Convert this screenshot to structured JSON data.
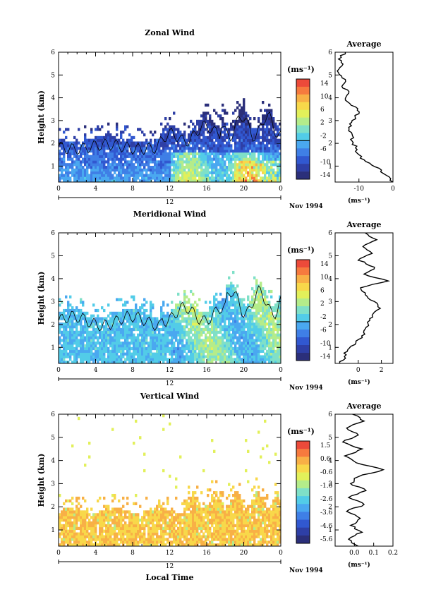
{
  "colors": {
    "palette": [
      "#2b2f7a",
      "#2e3fa6",
      "#3158d0",
      "#3f7fe6",
      "#4aa8f0",
      "#52cce8",
      "#7fe0c8",
      "#b4ec8a",
      "#e2f05a",
      "#f8d84a",
      "#f8b046",
      "#f67a3e",
      "#ec4a3a"
    ]
  },
  "chart_data": [
    {
      "type": "heatmap",
      "name": "zonal",
      "title": "Zonal Wind",
      "ylabel": "Height (km)",
      "xlim": [
        0,
        24
      ],
      "ylim": [
        0.3,
        6
      ],
      "xticks": [
        "0",
        "4",
        "8",
        "12",
        "16",
        "20",
        "0"
      ],
      "yticks": [
        "1",
        "2",
        "3",
        "4",
        "5",
        "6"
      ],
      "day_label": "12",
      "date_label": "Nov 1994",
      "colorbar": {
        "unit": "(ms⁻¹)",
        "ticks": [
          "14",
          "10",
          "6",
          "2",
          "-2",
          "-6",
          "-10",
          "-14"
        ],
        "zero_line_fraction": 0.615
      },
      "profile": {
        "title": "Average",
        "xlabel": "(ms⁻¹)",
        "xticks": [
          "-10",
          "0"
        ],
        "xlim": [
          -17,
          0
        ],
        "heights": [
          0.3,
          0.6,
          0.9,
          1.2,
          1.5,
          1.8,
          2.1,
          2.4,
          2.7,
          3.0,
          3.3,
          3.6,
          3.9,
          4.2,
          4.5,
          4.8,
          5.1,
          5.4,
          5.7,
          6.0
        ],
        "values": [
          0,
          -2,
          -4,
          -8,
          -10,
          -11,
          -12,
          -12,
          -13,
          -12,
          -10,
          -11,
          -14,
          -13,
          -15,
          -14,
          -16,
          -15,
          -16,
          -14
        ]
      }
    },
    {
      "type": "heatmap",
      "name": "meridional",
      "title": "Meridional Wind",
      "ylabel": "Height (km)",
      "xlim": [
        0,
        24
      ],
      "ylim": [
        0.3,
        6
      ],
      "xticks": [
        "0",
        "4",
        "8",
        "12",
        "16",
        "20",
        "0"
      ],
      "yticks": [
        "1",
        "2",
        "3",
        "4",
        "5",
        "6"
      ],
      "day_label": "12",
      "date_label": "Nov 1994",
      "colorbar": {
        "unit": "(ms⁻¹)",
        "ticks": [
          "14",
          "10",
          "6",
          "2",
          "-2",
          "-6",
          "-10",
          "-14"
        ],
        "zero_line_fraction": 0.615
      },
      "profile": {
        "title": "Average",
        "xlabel": "(ms⁻¹)",
        "xticks": [
          "0",
          "2"
        ],
        "xlim": [
          -2,
          3
        ],
        "heights": [
          0.3,
          0.6,
          0.9,
          1.2,
          1.5,
          1.8,
          2.1,
          2.4,
          2.7,
          3.0,
          3.3,
          3.6,
          3.9,
          4.2,
          4.5,
          4.8,
          5.1,
          5.4,
          5.7,
          6.0
        ],
        "values": [
          -1.6,
          -1.2,
          -0.9,
          -0.2,
          0.3,
          0.6,
          0.8,
          1.2,
          1.9,
          1.4,
          0.6,
          0.2,
          2.6,
          0.5,
          1.4,
          0.0,
          1.2,
          0.4,
          1.6,
          0.6
        ]
      }
    },
    {
      "type": "heatmap",
      "name": "vertical",
      "title": "Vertical Wind",
      "ylabel": "Height (km)",
      "xlabel": "Local Time",
      "xlim": [
        0,
        24
      ],
      "ylim": [
        0.3,
        6
      ],
      "xticks": [
        "0",
        "4",
        "8",
        "12",
        "16",
        "20",
        "0"
      ],
      "yticks": [
        "1",
        "2",
        "3",
        "4",
        "5",
        "6"
      ],
      "day_label": "12",
      "date_label": "Nov 1994",
      "colorbar": {
        "unit": "(ms⁻¹)",
        "ticks": [
          "1.5",
          "0.6",
          "-0.6",
          "-1.6",
          "-2.6",
          "-3.6",
          "-4.6",
          "-5.6"
        ],
        "zero_line_fraction": -1
      },
      "profile": {
        "title": "Average",
        "xlabel": "(ms⁻¹)",
        "xticks": [
          "0.0",
          "0.1",
          "0.2"
        ],
        "xlim": [
          -0.1,
          0.2
        ],
        "heights": [
          0.3,
          0.6,
          0.9,
          1.2,
          1.5,
          1.8,
          2.1,
          2.4,
          2.7,
          3.0,
          3.3,
          3.6,
          3.9,
          4.2,
          4.5,
          4.8,
          5.1,
          5.4,
          5.7,
          6.0
        ],
        "values": [
          0.02,
          -0.03,
          0.04,
          -0.02,
          0.03,
          -0.04,
          0.05,
          -0.03,
          0.06,
          -0.02,
          0.02,
          0.15,
          0.01,
          -0.05,
          0.04,
          -0.06,
          0.02,
          -0.04,
          0.05,
          -0.01
        ]
      }
    }
  ]
}
